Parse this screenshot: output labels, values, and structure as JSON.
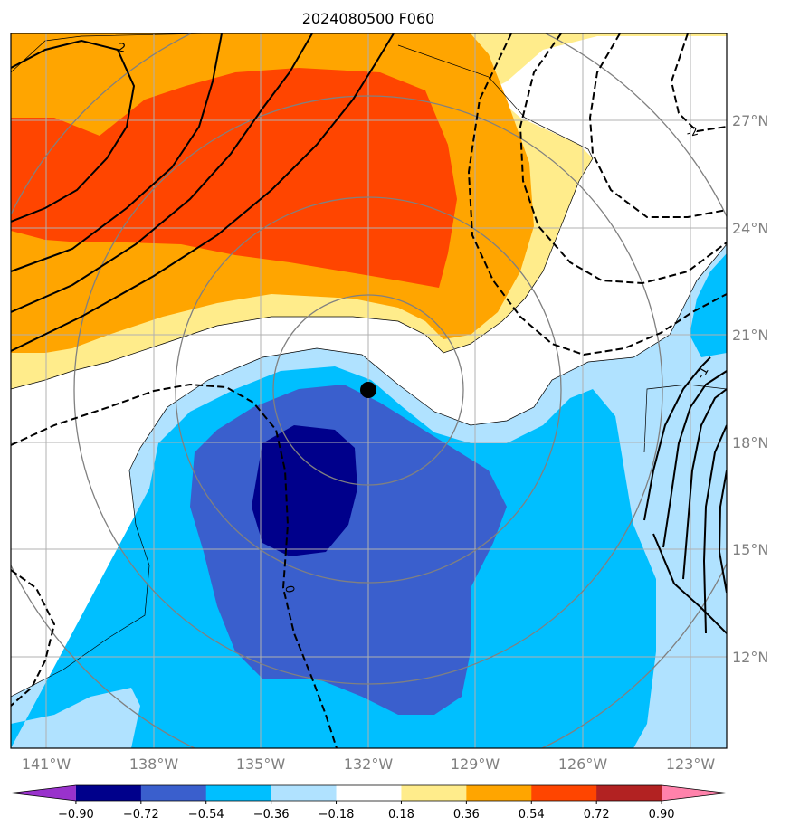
{
  "title": "2024080500 F060",
  "lon_labels": [
    "141°W",
    "138°W",
    "135°W",
    "132°W",
    "129°W",
    "126°W",
    "123°W"
  ],
  "lat_labels": [
    "27°N",
    "24°N",
    "21°N",
    "18°N",
    "15°N",
    "12°N"
  ],
  "contour_labels": [
    "2",
    "-2",
    "0",
    "-1"
  ],
  "colorbar": {
    "ticks": [
      "−0.90",
      "−0.72",
      "−0.54",
      "−0.36",
      "−0.18",
      "0.18",
      "0.36",
      "0.54",
      "0.72",
      "0.90"
    ],
    "colors": [
      "#9932cc",
      "#00008b",
      "#3a5fcd",
      "#00bfff",
      "#b0e2ff",
      "#ffffff",
      "#ffec8b",
      "#ffa500",
      "#ff4500",
      "#b22222",
      "#ff82ab"
    ]
  },
  "fill_colors": {
    "pos1": "#ffec8b",
    "pos2": "#ffa500",
    "pos3": "#ff4500",
    "neg1": "#b0e2ff",
    "neg2": "#00bfff",
    "neg3": "#3a5fcd",
    "neg4": "#00008b"
  },
  "storm_marker": {
    "lon": -132.0,
    "lat": 19.4
  }
}
